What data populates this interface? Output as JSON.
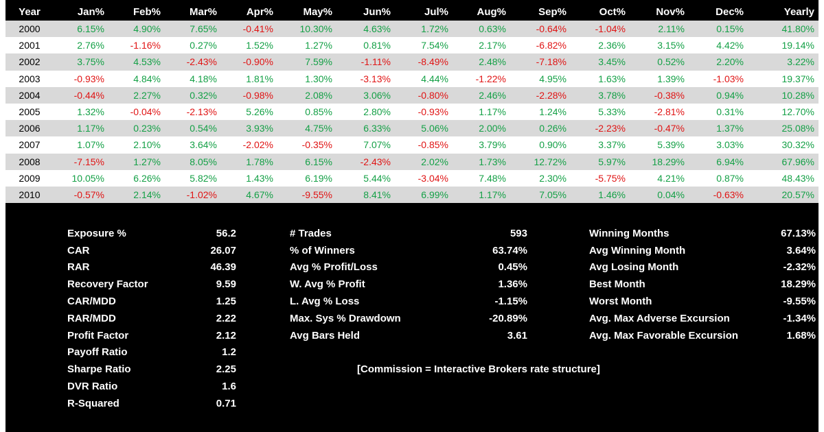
{
  "chart_data": {
    "type": "table",
    "columns": [
      "Year",
      "Jan%",
      "Feb%",
      "Mar%",
      "Apr%",
      "May%",
      "Jun%",
      "Jul%",
      "Aug%",
      "Sep%",
      "Oct%",
      "Nov%",
      "Dec%",
      "Yearly"
    ],
    "rows": [
      [
        "2000",
        "6.15%",
        "4.90%",
        "7.65%",
        "-0.41%",
        "10.30%",
        "4.63%",
        "1.72%",
        "0.63%",
        "-0.64%",
        "-1.04%",
        "2.11%",
        "0.15%",
        "41.80%"
      ],
      [
        "2001",
        "2.76%",
        "-1.16%",
        "0.27%",
        "1.52%",
        "1.27%",
        "0.81%",
        "7.54%",
        "2.17%",
        "-6.82%",
        "2.36%",
        "3.15%",
        "4.42%",
        "19.14%"
      ],
      [
        "2002",
        "3.75%",
        "4.53%",
        "-2.43%",
        "-0.90%",
        "7.59%",
        "-1.11%",
        "-8.49%",
        "2.48%",
        "-7.18%",
        "3.45%",
        "0.52%",
        "2.20%",
        "3.22%"
      ],
      [
        "2003",
        "-0.93%",
        "4.84%",
        "4.18%",
        "1.81%",
        "1.30%",
        "-3.13%",
        "4.44%",
        "-1.22%",
        "4.95%",
        "1.63%",
        "1.39%",
        "-1.03%",
        "19.37%"
      ],
      [
        "2004",
        "-0.44%",
        "2.27%",
        "0.32%",
        "-0.98%",
        "2.08%",
        "3.06%",
        "-0.80%",
        "2.46%",
        "-2.28%",
        "3.78%",
        "-0.38%",
        "0.94%",
        "10.28%"
      ],
      [
        "2005",
        "1.32%",
        "-0.04%",
        "-2.13%",
        "5.26%",
        "0.85%",
        "2.80%",
        "-0.93%",
        "1.17%",
        "1.24%",
        "5.33%",
        "-2.81%",
        "0.31%",
        "12.70%"
      ],
      [
        "2006",
        "1.17%",
        "0.23%",
        "0.54%",
        "3.93%",
        "4.75%",
        "6.33%",
        "5.06%",
        "2.00%",
        "0.26%",
        "-2.23%",
        "-0.47%",
        "1.37%",
        "25.08%"
      ],
      [
        "2007",
        "1.07%",
        "2.10%",
        "3.64%",
        "-2.02%",
        "-0.35%",
        "7.07%",
        "-0.85%",
        "3.79%",
        "0.90%",
        "3.37%",
        "5.39%",
        "3.03%",
        "30.32%"
      ],
      [
        "2008",
        "-7.15%",
        "1.27%",
        "8.05%",
        "1.78%",
        "6.15%",
        "-2.43%",
        "2.02%",
        "1.73%",
        "12.72%",
        "5.97%",
        "18.29%",
        "6.94%",
        "67.96%"
      ],
      [
        "2009",
        "10.05%",
        "6.26%",
        "5.82%",
        "1.43%",
        "6.19%",
        "5.44%",
        "-3.04%",
        "7.48%",
        "2.30%",
        "-5.75%",
        "4.21%",
        "0.87%",
        "48.43%"
      ],
      [
        "2010",
        "-0.57%",
        "2.14%",
        "-1.02%",
        "4.67%",
        "-9.55%",
        "8.41%",
        "6.99%",
        "1.17%",
        "7.05%",
        "1.46%",
        "0.04%",
        "-0.63%",
        "20.57%"
      ]
    ],
    "colors": {
      "positive": "#14a046",
      "negative": "#e01414",
      "header_bg": "#000000",
      "header_text": "#ffffff",
      "row_shade": "#d9d9d9",
      "row_plain": "#ffffff"
    }
  },
  "stats_left": [
    {
      "label": "Exposure %",
      "value": "56.2"
    },
    {
      "label": "CAR",
      "value": "26.07"
    },
    {
      "label": "RAR",
      "value": "46.39"
    },
    {
      "label": "Recovery Factor",
      "value": "9.59"
    },
    {
      "label": "CAR/MDD",
      "value": "1.25"
    },
    {
      "label": "RAR/MDD",
      "value": "2.22"
    },
    {
      "label": "Profit Factor",
      "value": "2.12"
    },
    {
      "label": "Payoff Ratio",
      "value": "1.2"
    },
    {
      "label": "Sharpe Ratio",
      "value": "2.25"
    },
    {
      "label": "DVR Ratio",
      "value": "1.6"
    },
    {
      "label": "R-Squared",
      "value": "0.71"
    }
  ],
  "stats_mid": [
    {
      "label": "# Trades",
      "value": "593"
    },
    {
      "label": "% of Winners",
      "value": "63.74%"
    },
    {
      "label": "Avg % Profit/Loss",
      "value": "0.45%"
    },
    {
      "label": "W. Avg % Profit",
      "value": "1.36%"
    },
    {
      "label": "L. Avg % Loss",
      "value": "-1.15%"
    },
    {
      "label": "Max. Sys % Drawdown",
      "value": "-20.89%"
    },
    {
      "label": "Avg Bars Held",
      "value": "3.61"
    }
  ],
  "stats_right": [
    {
      "label": "Winning Months",
      "value": "67.13%"
    },
    {
      "label": "Avg Winning Month",
      "value": "3.64%"
    },
    {
      "label": "Avg Losing Month",
      "value": "-2.32%"
    },
    {
      "label": "Best Month",
      "value": "18.29%"
    },
    {
      "label": "Worst Month",
      "value": "-9.55%"
    },
    {
      "label": "Avg. Max Adverse Excursion",
      "value": "-1.34%"
    },
    {
      "label": "Avg. Max Favorable Excursion",
      "value": "1.68%"
    }
  ],
  "note": "[Commission = Interactive Brokers rate structure]"
}
